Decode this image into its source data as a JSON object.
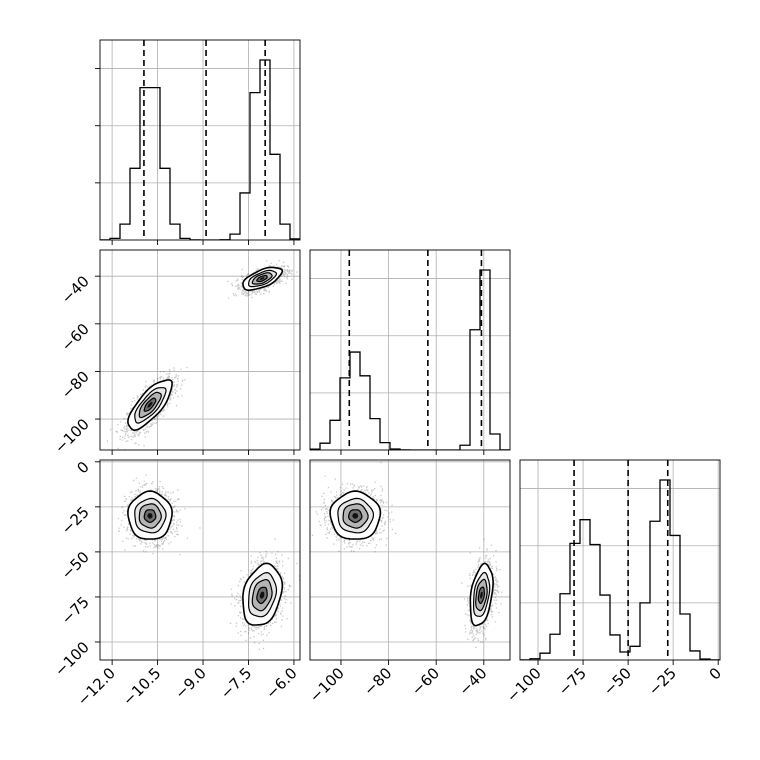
{
  "chart_data": {
    "type": "corner",
    "colors": {
      "hist": "#000000",
      "grid": "#b0b0b0",
      "scatter": "#000000",
      "background": "#ffffff"
    },
    "grid": true,
    "parameters": [
      {
        "ticks": [
          -12.0,
          -10.5,
          -9.0,
          -7.5,
          -6.0
        ],
        "tick_labels": [
          "−12.0",
          "−10.5",
          "−9.0",
          "−7.5",
          "−6.0"
        ],
        "range": [
          -12.4,
          -5.8
        ],
        "quantiles": [
          -10.95,
          -8.9,
          -6.95
        ],
        "modes": [
          {
            "center": -10.75,
            "sigma": 0.38,
            "weight": 0.5
          },
          {
            "center": -7.05,
            "sigma": 0.34,
            "weight": 0.5
          }
        ]
      },
      {
        "ticks": [
          -100,
          -80,
          -60,
          -40
        ],
        "tick_labels": [
          "−100",
          "−80",
          "−60",
          "−40"
        ],
        "range": [
          -113,
          -29
        ],
        "quantiles": [
          -96.5,
          -63.5,
          -41
        ],
        "modes": [
          {
            "center": -94,
            "sigma": 5.5,
            "weight": 0.5
          },
          {
            "center": -41,
            "sigma": 2.5,
            "weight": 0.5
          }
        ]
      },
      {
        "ticks": [
          -100,
          -75,
          -50,
          -25,
          0
        ],
        "tick_labels": [
          "−100",
          "−75",
          "−50",
          "−25",
          "0"
        ],
        "range": [
          -110,
          1
        ],
        "quantiles": [
          -80,
          -50,
          -28
        ],
        "modes": [
          {
            "center": -74,
            "sigma": 9,
            "weight": 0.5
          },
          {
            "center": -30,
            "sigma": 7,
            "weight": 0.5
          }
        ]
      }
    ],
    "hist_bins": 20,
    "pair_modes": {
      "1_0": [
        {
          "cx": -10.75,
          "cy": -94,
          "sx": 0.38,
          "sy": 5.5,
          "rho": 0.75,
          "w": 0.5
        },
        {
          "cx": -7.05,
          "cy": -41,
          "sx": 0.34,
          "sy": 2.5,
          "rho": 0.6,
          "w": 0.5
        }
      ],
      "2_0": [
        {
          "cx": -10.75,
          "cy": -30,
          "sx": 0.38,
          "sy": 7,
          "rho": 0.0,
          "w": 0.5
        },
        {
          "cx": -7.05,
          "cy": -74,
          "sx": 0.34,
          "sy": 9,
          "rho": 0.25,
          "w": 0.5
        }
      ],
      "2_1": [
        {
          "cx": -94,
          "cy": -30,
          "sx": 5.5,
          "sy": 7,
          "rho": 0.0,
          "w": 0.5
        },
        {
          "cx": -41,
          "cy": -74,
          "sx": 2.5,
          "sy": 9,
          "rho": 0.35,
          "w": 0.5
        }
      ]
    }
  }
}
